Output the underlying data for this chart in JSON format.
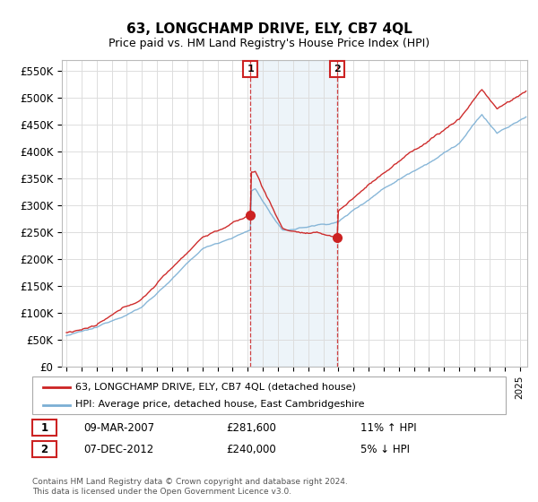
{
  "title": "63, LONGCHAMP DRIVE, ELY, CB7 4QL",
  "subtitle": "Price paid vs. HM Land Registry's House Price Index (HPI)",
  "ylim": [
    0,
    570000
  ],
  "yticks": [
    0,
    50000,
    100000,
    150000,
    200000,
    250000,
    300000,
    350000,
    400000,
    450000,
    500000,
    550000
  ],
  "ytick_labels": [
    "£0",
    "£50K",
    "£100K",
    "£150K",
    "£200K",
    "£250K",
    "£300K",
    "£350K",
    "£400K",
    "£450K",
    "£500K",
    "£550K"
  ],
  "hpi_color": "#7bafd4",
  "price_color": "#cc2222",
  "sale1_year": 2007.17,
  "sale1_price": 281600,
  "sale2_year": 2012.92,
  "sale2_price": 240000,
  "legend_label1": "63, LONGCHAMP DRIVE, ELY, CB7 4QL (detached house)",
  "legend_label2": "HPI: Average price, detached house, East Cambridgeshire",
  "sale1_date": "09-MAR-2007",
  "sale1_price_str": "£281,600",
  "sale1_hpi_str": "11% ↑ HPI",
  "sale2_date": "07-DEC-2012",
  "sale2_price_str": "£240,000",
  "sale2_hpi_str": "5% ↓ HPI",
  "footer": "Contains HM Land Registry data © Crown copyright and database right 2024.\nThis data is licensed under the Open Government Licence v3.0.",
  "chart_bg": "#ffffff",
  "fig_bg": "#ffffff",
  "grid_color": "#dddddd"
}
